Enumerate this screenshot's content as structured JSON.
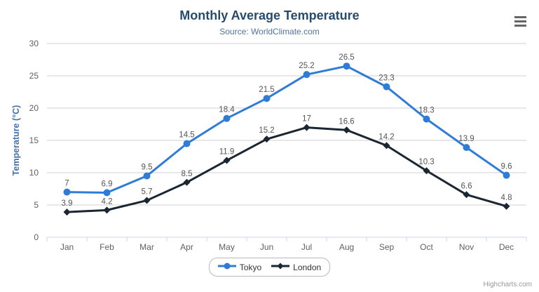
{
  "chart_data": {
    "type": "line",
    "title": "Monthly Average Temperature",
    "subtitle": "Source: WorldClimate.com",
    "categories": [
      "Jan",
      "Feb",
      "Mar",
      "Apr",
      "May",
      "Jun",
      "Jul",
      "Aug",
      "Sep",
      "Oct",
      "Nov",
      "Dec"
    ],
    "series": [
      {
        "name": "Tokyo",
        "color": "#2f7cd8",
        "marker": "circle",
        "values": [
          7,
          6.9,
          9.5,
          14.5,
          18.4,
          21.5,
          25.2,
          26.5,
          23.3,
          18.3,
          13.9,
          9.6
        ]
      },
      {
        "name": "London",
        "color": "#1b2633",
        "marker": "diamond",
        "values": [
          3.9,
          4.2,
          5.7,
          8.5,
          11.9,
          15.2,
          17,
          16.6,
          14.2,
          10.3,
          6.6,
          4.8
        ]
      }
    ],
    "xlabel": "",
    "ylabel": "Temperature (°C)",
    "ylim": [
      0,
      30
    ],
    "yticks": [
      0,
      5,
      10,
      15,
      20,
      25,
      30
    ],
    "grid": "horizontal",
    "legend_position": "bottom",
    "data_labels": true
  },
  "theme": {
    "title_color": "#274b6d",
    "subtitle_color": "#4d759e",
    "axis_title_color": "#4572a7",
    "tick_label_color": "#606060",
    "data_label_color": "#555555",
    "grid_color": "#d0d0d0",
    "axis_line_color": "#ccd6eb",
    "background": "#ffffff"
  },
  "credits": {
    "text": "Highcharts.com"
  }
}
